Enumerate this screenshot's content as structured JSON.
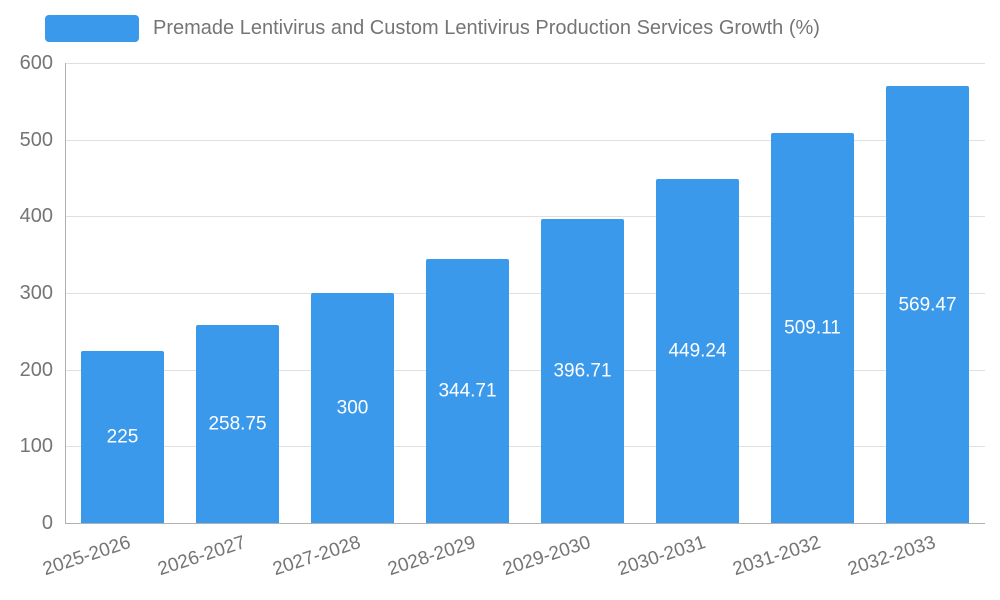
{
  "chart_data": {
    "type": "bar",
    "title": "Premade Lentivirus and Custom Lentivirus Production Services Growth (%)",
    "categories": [
      "2025-2026",
      "2026-2027",
      "2027-2028",
      "2028-2029",
      "2029-2030",
      "2030-2031",
      "2031-2032",
      "2032-2033"
    ],
    "values": [
      225,
      258.75,
      300,
      344.71,
      396.71,
      449.24,
      509.11,
      569.47
    ],
    "value_labels": [
      "225",
      "258.75",
      "300",
      "344.71",
      "396.71",
      "449.24",
      "509.11",
      "569.47"
    ],
    "xlabel": "",
    "ylabel": "",
    "ylim": [
      0,
      600
    ],
    "yticks": [
      0,
      100,
      200,
      300,
      400,
      500,
      600
    ],
    "grid": true,
    "legend_position": "top-left",
    "colors": {
      "bar": "#3b99ec",
      "bar_value_label": "#ffffff",
      "axis_text": "#757575",
      "legend_text": "#757575",
      "gridline": "#e0e0e0",
      "axis_line": "#b0b0b0",
      "background": "#ffffff"
    }
  }
}
